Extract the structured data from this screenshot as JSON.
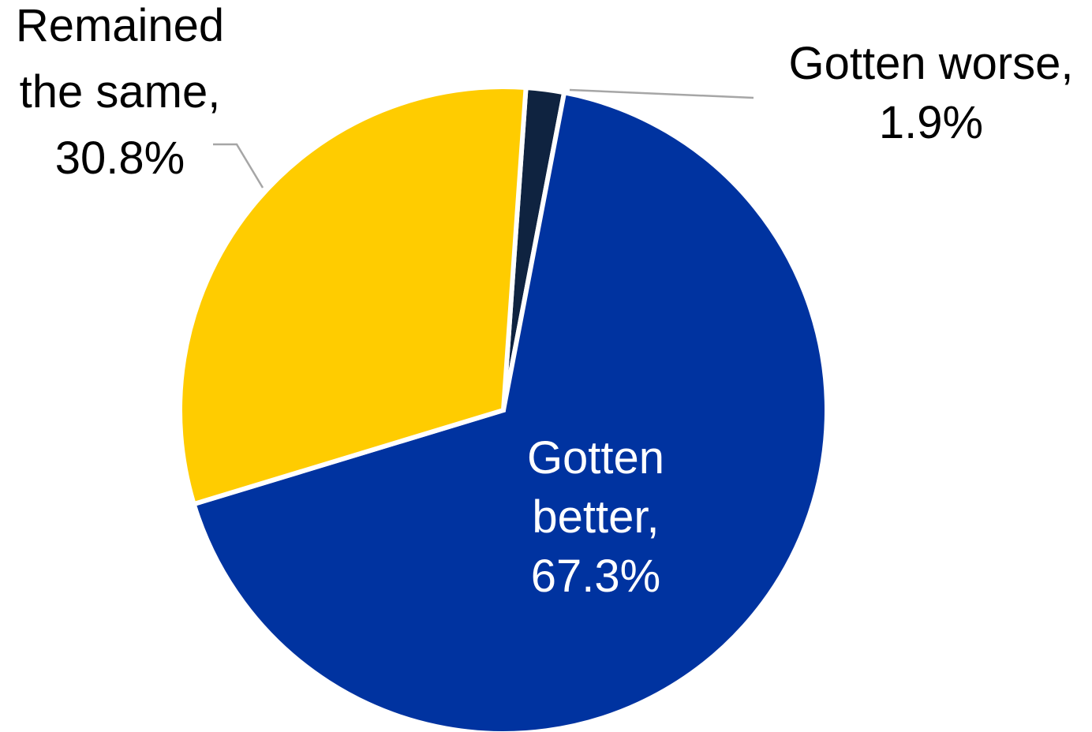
{
  "chart_data": {
    "type": "pie",
    "start_angle_deg": 4,
    "direction": "clockwise",
    "slices": [
      {
        "name": "Gotten worse",
        "value": 1.9,
        "color": "#0f2340",
        "label_lines": [
          "Gotten worse,",
          "1.9%"
        ]
      },
      {
        "name": "Gotten better",
        "value": 67.3,
        "color": "#0033a0",
        "label_lines": [
          "Gotten",
          "better,",
          "67.3%"
        ]
      },
      {
        "name": "Remained the same",
        "value": 30.8,
        "color": "#ffcc00",
        "label_lines": [
          "Remained",
          "the same,",
          "30.8%"
        ]
      }
    ]
  }
}
